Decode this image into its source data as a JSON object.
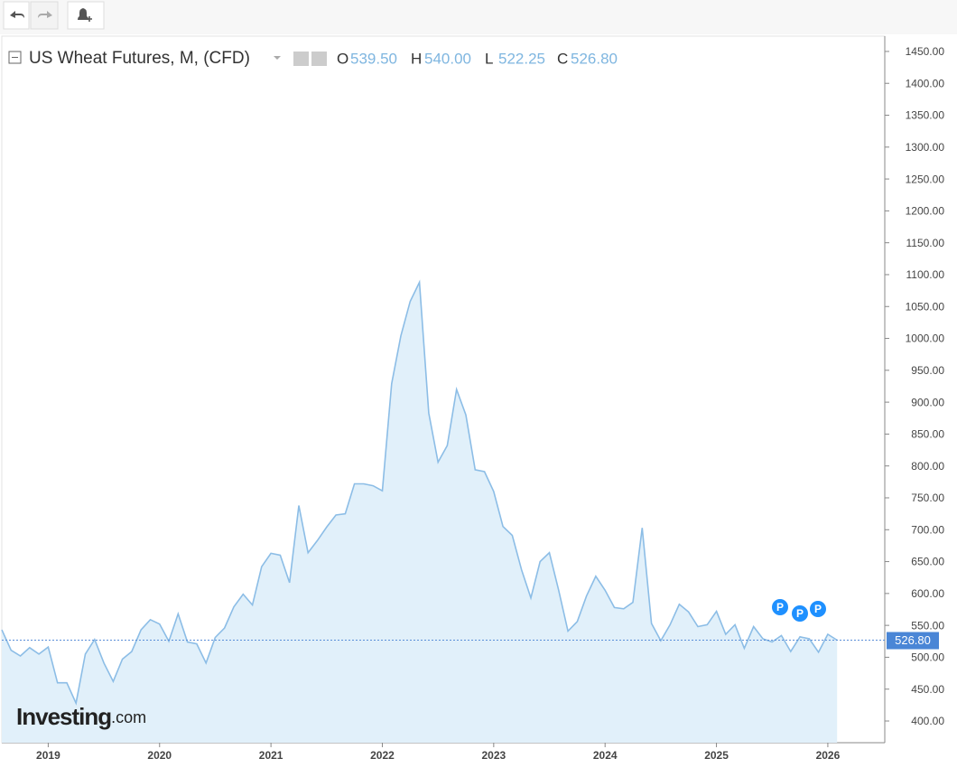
{
  "chart_data": {
    "type": "area",
    "title": "US Wheat Futures, M, (CFD)",
    "ohlc": [
      {
        "key": "O",
        "value": "539.50"
      },
      {
        "key": "H",
        "value": "540.00"
      },
      {
        "key": "L",
        "value": "522.25"
      },
      {
        "key": "C",
        "value": "526.80"
      }
    ],
    "categories": [
      null,
      null,
      null,
      null,
      null,
      "2019",
      null,
      null,
      null,
      null,
      null,
      null,
      null,
      null,
      null,
      null,
      null,
      "2020",
      null,
      null,
      null,
      null,
      null,
      null,
      null,
      null,
      null,
      null,
      null,
      "2021",
      null,
      null,
      null,
      null,
      null,
      null,
      null,
      null,
      null,
      null,
      null,
      "2022",
      null,
      null,
      null,
      null,
      null,
      null,
      null,
      null,
      null,
      null,
      null,
      "2023",
      null,
      null,
      null,
      null,
      null,
      null,
      null,
      null,
      null,
      null,
      null,
      "2024",
      null,
      null,
      null,
      null,
      null,
      null,
      null,
      null,
      null,
      null,
      null,
      "2025",
      null,
      null,
      null,
      null,
      null,
      null,
      null,
      null,
      null,
      null,
      null,
      "2026",
      null
    ],
    "values": [
      543,
      511,
      502,
      515,
      505,
      516,
      460,
      460,
      428,
      505,
      528,
      491,
      462,
      497,
      509,
      543,
      559,
      552,
      525,
      568,
      524,
      521,
      491,
      531,
      546,
      579,
      599,
      582,
      642,
      663,
      660,
      617,
      738,
      664,
      683,
      704,
      723,
      725,
      772,
      772,
      769,
      761,
      929,
      1004,
      1058,
      1088,
      883,
      806,
      832,
      920,
      880,
      794,
      791,
      760,
      705,
      691,
      637,
      593,
      650,
      664,
      605,
      541,
      556,
      596,
      627,
      605,
      578,
      576,
      586,
      703,
      553,
      526,
      551,
      583,
      571,
      548,
      551,
      572,
      536,
      551,
      514,
      548,
      529,
      524,
      534,
      509,
      532,
      529,
      508,
      536,
      526.8
    ],
    "color": "#8cbde6",
    "fill": "#e1f0fa",
    "ylim": [
      366,
      1474
    ],
    "yticks": [
      {
        "value": 400,
        "label": "400.00"
      },
      {
        "value": 450,
        "label": "450.00"
      },
      {
        "value": 500,
        "label": "500.00"
      },
      {
        "value": 550,
        "label": "550.00"
      },
      {
        "value": 600,
        "label": "600.00"
      },
      {
        "value": 650,
        "label": "650.00"
      },
      {
        "value": 700,
        "label": "700.00"
      },
      {
        "value": 750,
        "label": "750.00"
      },
      {
        "value": 800,
        "label": "800.00"
      },
      {
        "value": 850,
        "label": "850.00"
      },
      {
        "value": 900,
        "label": "900.00"
      },
      {
        "value": 950,
        "label": "950.00"
      },
      {
        "value": 1000,
        "label": "1000.00"
      },
      {
        "value": 1050,
        "label": "1050.00"
      },
      {
        "value": 1100,
        "label": "1100.00"
      },
      {
        "value": 1150,
        "label": "1150.00"
      },
      {
        "value": 1200,
        "label": "1200.00"
      },
      {
        "value": 1250,
        "label": "1250.00"
      },
      {
        "value": 1300,
        "label": "1300.00"
      },
      {
        "value": 1350,
        "label": "1350.00"
      },
      {
        "value": 1400,
        "label": "1400.00"
      },
      {
        "value": 1450,
        "label": "1450.00"
      }
    ],
    "last_price": {
      "value": 526.8,
      "label": "526.80"
    },
    "markers": [
      "P",
      "P",
      "P"
    ],
    "logo": "Investing",
    "logo_suffix": ".com"
  }
}
